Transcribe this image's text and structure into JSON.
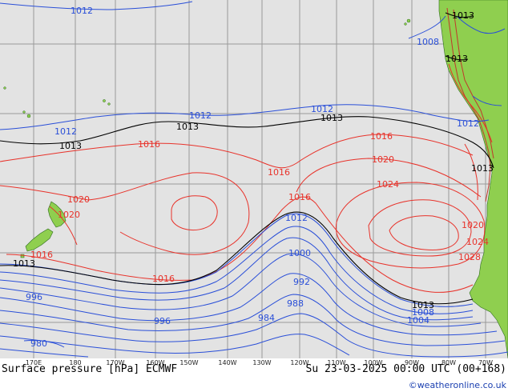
{
  "caption": {
    "left": "Surface pressure [hPa] ECMWF",
    "right": "Su 23-03-2025 00:00 UTC (00+168)"
  },
  "credit": "©weatheronline.co.uk",
  "lon_ticks": [
    "170E",
    "180",
    "170W",
    "160W",
    "150W",
    "140W",
    "130W",
    "120W",
    "110W",
    "100W",
    "90W",
    "80W",
    "70W"
  ],
  "colors": {
    "sea": "#e3e3e3",
    "land": "#8fcf4f",
    "grid": "#9a9a9a",
    "high_isobar": "#e8322a",
    "low_isobar": "#2a4fd8",
    "mean_isobar": "#000000"
  },
  "isobar_labels": {
    "l980": "980",
    "l984": "984",
    "l988": "988",
    "l992": "992",
    "l996": "996",
    "l996b": "996",
    "l1000": "1000",
    "l1004": "1004",
    "l1008": "1008",
    "l1008b": "1008",
    "l1012a": "1012",
    "l1012b": "1012",
    "l1012c": "1012",
    "l1012d": "1012",
    "l1012e": "1012",
    "l1012f": "1012",
    "l1013a": "1013",
    "l1013b": "1013",
    "l1013c": "1013",
    "l1013d": "1013",
    "l1013e": "1013",
    "l1013f": "1013",
    "l1013g": "1013",
    "l1013h": "1013",
    "l1016a": "1016",
    "l1016b": "1016",
    "l1016c": "1016",
    "l1016d": "1016",
    "l1016e": "1016",
    "l1016f": "1016",
    "l1020a": "1020",
    "l1020b": "1020",
    "l1020c": "1020",
    "l1020d": "1020",
    "l1024a": "1024",
    "l1024b": "1024",
    "l1028": "1028"
  }
}
